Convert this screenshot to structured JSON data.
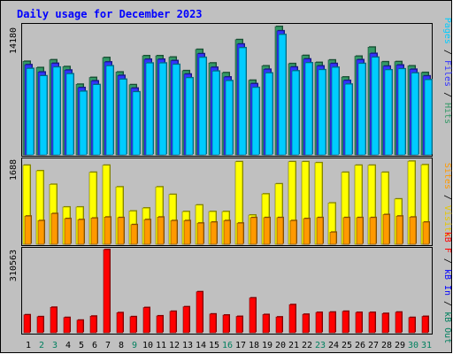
{
  "chart_data": [
    {
      "type": "bar",
      "title": "Daily usage for December 2023",
      "ymax_label": "14180",
      "side_labels": [
        "Pages",
        "Files",
        "Hits"
      ],
      "categories": [
        "1",
        "2",
        "3",
        "4",
        "5",
        "6",
        "7",
        "8",
        "9",
        "10",
        "11",
        "12",
        "13",
        "14",
        "15",
        "16",
        "17",
        "18",
        "19",
        "20",
        "21",
        "22",
        "23",
        "24",
        "25",
        "26",
        "27",
        "28",
        "29",
        "30",
        "31"
      ],
      "series": [
        {
          "name": "Hits",
          "color": "#339966",
          "values": [
            10330,
            9640,
            10500,
            9750,
            7800,
            8550,
            10750,
            9150,
            7750,
            10950,
            10950,
            10800,
            9300,
            11650,
            10150,
            9080,
            12730,
            8240,
            9830,
            14180,
            10080,
            10980,
            10210,
            10480,
            8600,
            10900,
            11900,
            10280,
            10300,
            9830,
            9100
          ]
        },
        {
          "name": "Files",
          "color": "#3333ff",
          "values": [
            9960,
            9150,
            10110,
            9360,
            7430,
            8170,
            10260,
            8770,
            7370,
            10560,
            10560,
            10410,
            8920,
            11170,
            9670,
            8600,
            12240,
            7860,
            9450,
            13700,
            9700,
            10590,
            9820,
            10090,
            8220,
            10510,
            11200,
            9800,
            9920,
            9450,
            8720
          ]
        },
        {
          "name": "Pages",
          "color": "#00ccff",
          "values": [
            9540,
            8730,
            9690,
            8950,
            7020,
            7760,
            9830,
            8350,
            6960,
            10140,
            10140,
            9990,
            8510,
            10760,
            9250,
            8190,
            11830,
            7440,
            9040,
            13290,
            9280,
            10170,
            9400,
            9670,
            7810,
            10090,
            10780,
            9390,
            9500,
            9040,
            8300
          ]
        }
      ]
    },
    {
      "type": "bar",
      "ymax_label": "1688",
      "side_labels": [
        "Visits",
        "Sites"
      ],
      "categories": [
        "1",
        "2",
        "3",
        "4",
        "5",
        "6",
        "7",
        "8",
        "9",
        "10",
        "11",
        "12",
        "13",
        "14",
        "15",
        "16",
        "17",
        "18",
        "19",
        "20",
        "21",
        "22",
        "23",
        "24",
        "25",
        "26",
        "27",
        "28",
        "29",
        "30",
        "31"
      ],
      "series": [
        {
          "name": "Visits",
          "color": "#ffff00",
          "values": [
            1570,
            1460,
            1190,
            740,
            740,
            1430,
            1570,
            1140,
            660,
            720,
            1140,
            990,
            650,
            780,
            650,
            650,
            1640,
            580,
            1000,
            1200,
            1640,
            1640,
            1620,
            820,
            1430,
            1570,
            1570,
            1430,
            900,
            1650,
            1580
          ]
        },
        {
          "name": "Sites",
          "color": "#ff9900",
          "values": [
            560,
            470,
            610,
            510,
            490,
            520,
            540,
            530,
            390,
            490,
            540,
            470,
            470,
            420,
            440,
            470,
            420,
            530,
            530,
            530,
            470,
            510,
            530,
            240,
            530,
            530,
            530,
            590,
            560,
            540,
            440
          ]
        }
      ]
    },
    {
      "type": "bar",
      "ymax_label": "310563",
      "side_labels": [
        "kB F",
        "kB In",
        "kB Out"
      ],
      "categories": [
        "1",
        "2",
        "3",
        "4",
        "5",
        "6",
        "7",
        "8",
        "9",
        "10",
        "11",
        "12",
        "13",
        "14",
        "15",
        "16",
        "17",
        "18",
        "19",
        "20",
        "21",
        "22",
        "23",
        "24",
        "25",
        "26",
        "27",
        "28",
        "29",
        "30",
        "31"
      ],
      "weekend_days": [
        2,
        3,
        9,
        16,
        23,
        30,
        31
      ],
      "series": [
        {
          "name": "kB F",
          "color": "#ff0000",
          "values": [
            67000,
            60000,
            95000,
            57000,
            47000,
            62000,
            310563,
            75000,
            60000,
            94000,
            63000,
            80000,
            97000,
            153000,
            70000,
            66000,
            61000,
            130000,
            68000,
            59000,
            105000,
            69000,
            76000,
            77000,
            80000,
            76000,
            76000,
            72000,
            77000,
            57000,
            61000
          ]
        }
      ]
    }
  ],
  "colors": {
    "panel_bg": "#c0c0c0",
    "frame": "#000000",
    "title": "#0000ff",
    "weekday": "#000000",
    "weekend": "#00805f"
  }
}
